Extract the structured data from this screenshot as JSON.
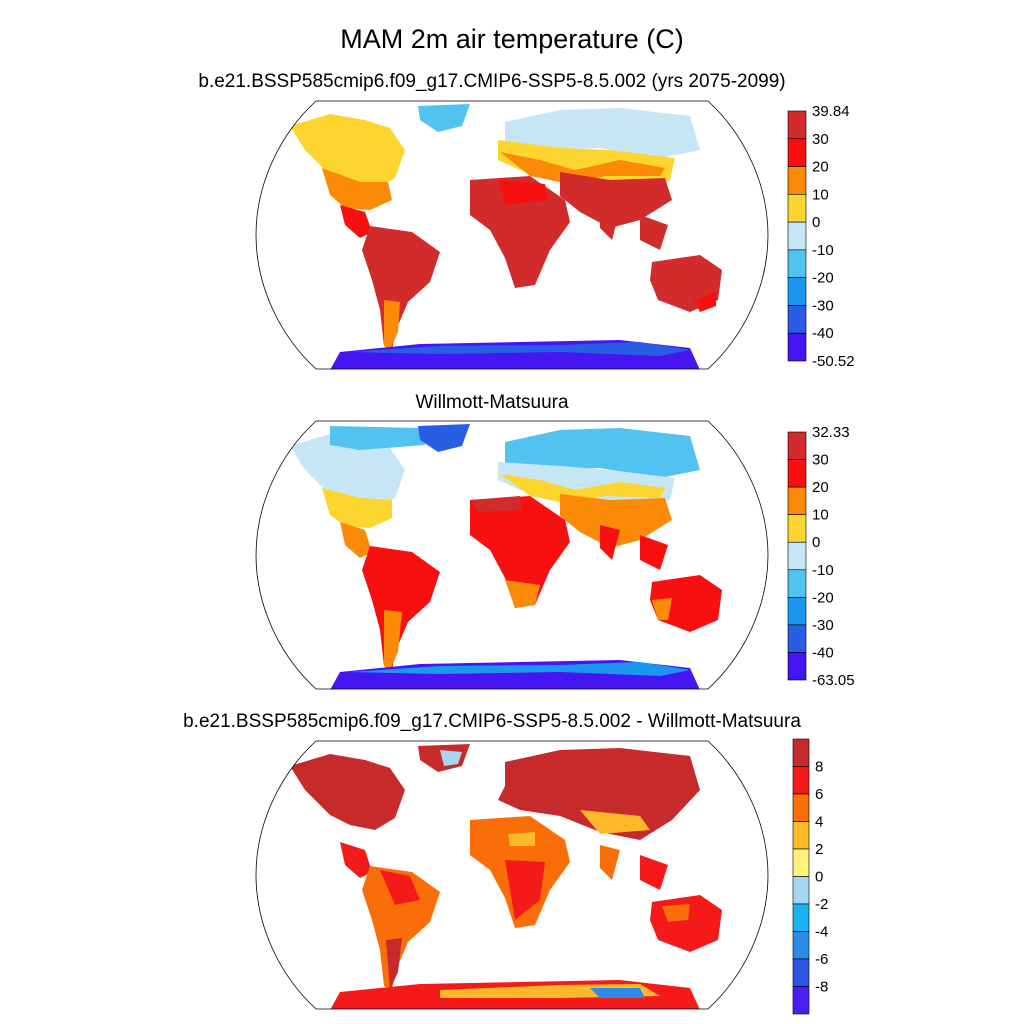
{
  "title": "MAM 2m air temperature (C)",
  "panels": [
    {
      "id": "model",
      "title": "b.e21.BSSP585cmip6.f09_g17.CMIP6-SSP5-8.5.002 (yrs 2075-2099)",
      "colorbar": {
        "labels": [
          "39.84",
          "30",
          "20",
          "10",
          "0",
          "-10",
          "-20",
          "-30",
          "-40",
          "-50.52"
        ],
        "colors": [
          "#d12b2b",
          "#f80f0f",
          "#fb8a06",
          "#fcd52f",
          "#c7e6f5",
          "#52c3f0",
          "#1c97ef",
          "#2a5de6",
          "#4516f1"
        ]
      }
    },
    {
      "id": "obs",
      "title": "Willmott-Matsuura",
      "colorbar": {
        "labels": [
          "32.33",
          "30",
          "20",
          "10",
          "0",
          "-10",
          "-20",
          "-30",
          "-40",
          "-63.05"
        ],
        "colors": [
          "#d12b2b",
          "#f80f0f",
          "#fb8a06",
          "#fcd52f",
          "#c7e6f5",
          "#52c3f0",
          "#1c97ef",
          "#2a5de6",
          "#4516f1"
        ]
      }
    },
    {
      "id": "diff",
      "title": "b.e21.BSSP585cmip6.f09_g17.CMIP6-SSP5-8.5.002 - Willmott-Matsuura",
      "colorbar": {
        "labels": [
          "8",
          "6",
          "4",
          "2",
          "0",
          "-2",
          "-4",
          "-6",
          "-8"
        ],
        "colors": [
          "#c62a2a",
          "#f41a1a",
          "#fa6e0a",
          "#fdb92a",
          "#fff17a",
          "#a8d6f2",
          "#1bb2f0",
          "#2a8ce8",
          "#2e55e2",
          "#4a1ff2"
        ]
      }
    }
  ]
}
